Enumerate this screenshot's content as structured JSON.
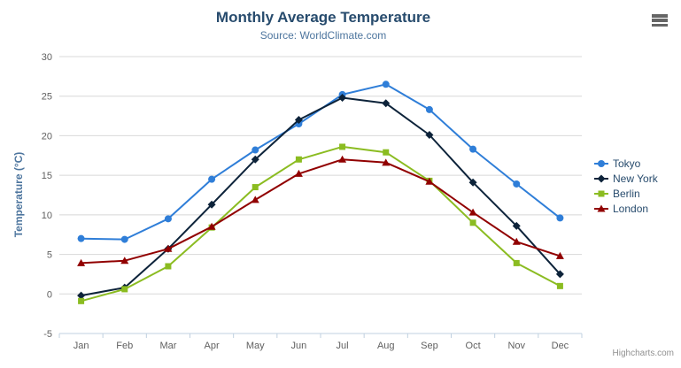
{
  "chart_data": {
    "type": "line",
    "title": "Monthly Average Temperature",
    "subtitle": "Source: WorldClimate.com",
    "xlabel": "",
    "ylabel": "Temperature (°C)",
    "ylim": [
      -5,
      30
    ],
    "ytick_interval": 5,
    "yticks": [
      -5,
      0,
      5,
      10,
      15,
      20,
      25,
      30
    ],
    "categories": [
      "Jan",
      "Feb",
      "Mar",
      "Apr",
      "May",
      "Jun",
      "Jul",
      "Aug",
      "Sep",
      "Oct",
      "Nov",
      "Dec"
    ],
    "series": [
      {
        "name": "Tokyo",
        "color": "#2f7ed8",
        "marker": "circle",
        "values": [
          7.0,
          6.9,
          9.5,
          14.5,
          18.2,
          21.5,
          25.2,
          26.5,
          23.3,
          18.3,
          13.9,
          9.6
        ]
      },
      {
        "name": "New York",
        "color": "#0d233a",
        "marker": "diamond",
        "values": [
          -0.2,
          0.8,
          5.7,
          11.3,
          17.0,
          22.0,
          24.8,
          24.1,
          20.1,
          14.1,
          8.6,
          2.5
        ]
      },
      {
        "name": "Berlin",
        "color": "#8bbc21",
        "marker": "square",
        "values": [
          -0.9,
          0.6,
          3.5,
          8.4,
          13.5,
          17.0,
          18.6,
          17.9,
          14.3,
          9.0,
          3.9,
          1.0
        ]
      },
      {
        "name": "London",
        "color": "#910000",
        "marker": "triangle",
        "values": [
          3.9,
          4.2,
          5.7,
          8.5,
          11.9,
          15.2,
          17.0,
          16.6,
          14.2,
          10.3,
          6.6,
          4.8
        ]
      }
    ],
    "legend": {
      "layout": "vertical",
      "position": "right"
    },
    "grid": true,
    "credits": "Highcharts.com"
  },
  "icons": {
    "context_menu": "hamburger-menu-icon"
  },
  "colors": {
    "title_text": "#274b6d",
    "subtitle_text": "#4d759e",
    "axis_title_text": "#4d759e",
    "axis_label_text": "#606060",
    "legend_text": "#274b6d",
    "gridline": "#d8d8d8",
    "axis_line": "#c0d0e0",
    "credits_text": "#909090",
    "menu_icon": "#666666"
  }
}
